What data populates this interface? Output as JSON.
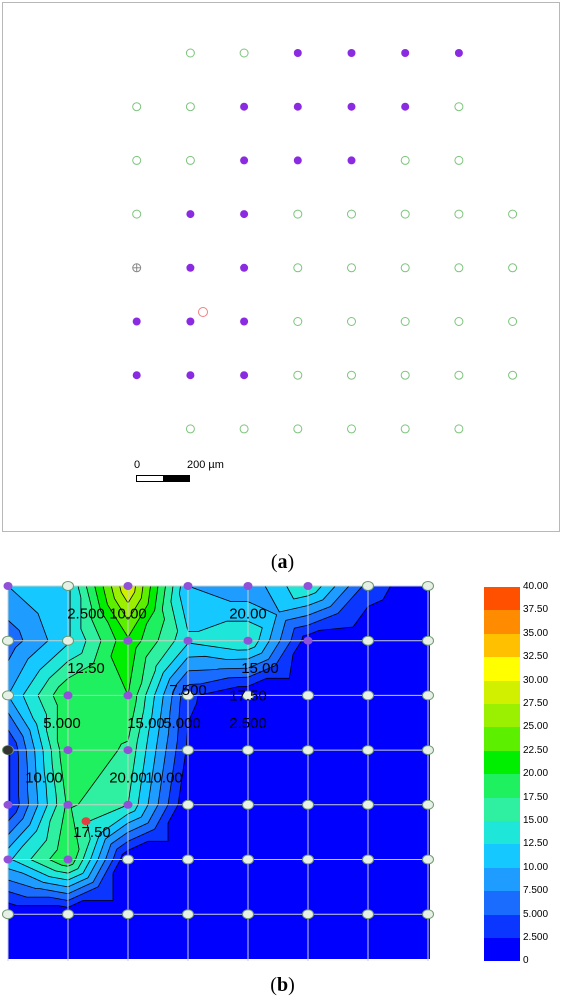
{
  "panel_a": {
    "caption_letter": "a",
    "scale_zero": "0",
    "scale_length": "200 µm",
    "colors": {
      "filled": "#8a2be2",
      "open": "#7cc47c",
      "reference": "#888888",
      "marker": "#f08080"
    },
    "grid": [
      "..oo####.",
      ".oo####o.",
      ".oo###oo.",
      ".o##ooooo",
      ".x##ooooo",
      ".###ooooo",
      ".###ooooo",
      "..oooooo."
    ]
  },
  "panel_b": {
    "caption_letter": "b",
    "chart_data": {
      "type": "contour",
      "x": [
        0,
        1,
        2,
        3,
        4,
        5,
        6,
        7
      ],
      "y": [
        0,
        1,
        2,
        3,
        4,
        5,
        6
      ],
      "z": [
        [
          10,
          12,
          30,
          10,
          8,
          15,
          4,
          0
        ],
        [
          6,
          12,
          22,
          13,
          15,
          1,
          0,
          0
        ],
        [
          10,
          20,
          20,
          3,
          0,
          0,
          0,
          0
        ],
        [
          2,
          20,
          17,
          2,
          0,
          0,
          0,
          0
        ],
        [
          2,
          18,
          15,
          0,
          0,
          0,
          0,
          0
        ],
        [
          12,
          20,
          0,
          0,
          0,
          0,
          0,
          0
        ],
        [
          0,
          0,
          0,
          0,
          0,
          0,
          0,
          0
        ]
      ],
      "levels": [
        2.5,
        5,
        7.5,
        10,
        12.5,
        15,
        17.5,
        20,
        22.5,
        25,
        27.5,
        30,
        32.5,
        35,
        37.5,
        40
      ],
      "contour_labels": [
        {
          "text": "2.500",
          "x": 1.3,
          "y": 0.5
        },
        {
          "text": "10.00",
          "x": 2.0,
          "y": 0.5
        },
        {
          "text": "20.00",
          "x": 4.0,
          "y": 0.5
        },
        {
          "text": "12.50",
          "x": 1.3,
          "y": 1.5
        },
        {
          "text": "15.00",
          "x": 4.2,
          "y": 1.5
        },
        {
          "text": "7.500",
          "x": 3.0,
          "y": 1.9
        },
        {
          "text": "17.50",
          "x": 4.0,
          "y": 2.0
        },
        {
          "text": "2.500",
          "x": 4.0,
          "y": 2.5
        },
        {
          "text": "5.000",
          "x": 0.9,
          "y": 2.5
        },
        {
          "text": "15.00",
          "x": 2.3,
          "y": 2.5
        },
        {
          "text": "5.000",
          "x": 2.9,
          "y": 2.5
        },
        {
          "text": "10.00",
          "x": 0.6,
          "y": 3.5
        },
        {
          "text": "20.00",
          "x": 2.0,
          "y": 3.5
        },
        {
          "text": "10.00",
          "x": 2.6,
          "y": 3.5
        },
        {
          "text": "17.50",
          "x": 1.4,
          "y": 4.5
        }
      ],
      "colorbar": {
        "labels": [
          "40.00",
          "37.50",
          "35.00",
          "32.50",
          "30.00",
          "27.50",
          "25.00",
          "22.50",
          "20.00",
          "17.50",
          "15.00",
          "12.50",
          "10.00",
          "7.500",
          "5.000",
          "2.500",
          "0"
        ],
        "colors": [
          "#0000ff",
          "#0a36ff",
          "#1a6cff",
          "#1e9cff",
          "#15c8ff",
          "#1ee6d8",
          "#2ef0a0",
          "#1ef060",
          "#00ee00",
          "#5cf000",
          "#9af000",
          "#d0f000",
          "#ffff00",
          "#ffc000",
          "#ff8c00",
          "#ff5000",
          "#ff0000"
        ]
      }
    }
  }
}
